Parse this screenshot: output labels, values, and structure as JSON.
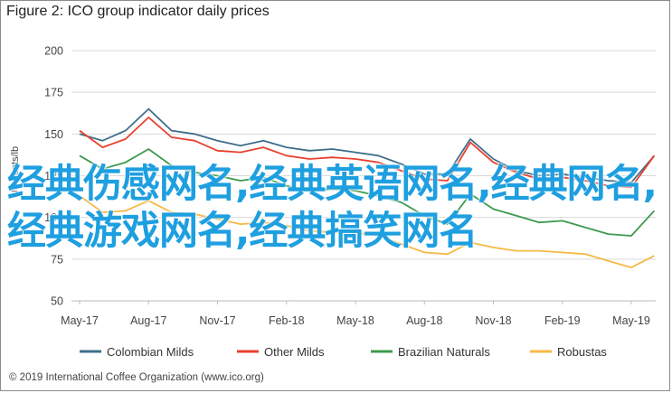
{
  "page": {
    "title": "Figure 2: ICO group indicator daily prices",
    "overlay_text": "经典伤感网名,经典英语网名,经典网名,经典游戏网名,经典搞笑网名",
    "credit": "© 2019 International Coffee Organization (www.ico.org)"
  },
  "chart_data": {
    "type": "line",
    "title": "Figure 2: ICO group indicator daily prices",
    "ylabel": "US cents/lb",
    "xlabel": "",
    "ylim": [
      50,
      200
    ],
    "yticks": [
      50,
      75,
      100,
      125,
      150,
      175,
      200
    ],
    "ytick_labels": [
      "50",
      "75",
      "100",
      "125",
      "150",
      "175",
      "200"
    ],
    "xticks": [
      "May-17",
      "Aug-17",
      "Nov-17",
      "Feb-18",
      "May-18",
      "Aug-18",
      "Nov-18",
      "Feb-19",
      "May-19"
    ],
    "grid": true,
    "legend_position": "bottom",
    "x": [
      "2017-05",
      "2017-06",
      "2017-07",
      "2017-08",
      "2017-09",
      "2017-10",
      "2017-11",
      "2017-12",
      "2018-01",
      "2018-02",
      "2018-03",
      "2018-04",
      "2018-05",
      "2018-06",
      "2018-07",
      "2018-08",
      "2018-09",
      "2018-10",
      "2018-11",
      "2018-12",
      "2019-01",
      "2019-02",
      "2019-03",
      "2019-04",
      "2019-05",
      "2019-06"
    ],
    "series": [
      {
        "name": "Colombian Milds",
        "color": "#3f6e8c",
        "values": [
          150,
          146,
          152,
          165,
          152,
          150,
          146,
          143,
          146,
          142,
          140,
          141,
          139,
          137,
          132,
          126,
          126,
          147,
          135,
          128,
          125,
          126,
          124,
          122,
          121,
          137
        ]
      },
      {
        "name": "Other Milds",
        "color": "#e8412e",
        "values": [
          152,
          142,
          147,
          160,
          148,
          146,
          140,
          139,
          142,
          137,
          135,
          136,
          135,
          133,
          128,
          123,
          122,
          145,
          133,
          127,
          123,
          124,
          122,
          119,
          118,
          137
        ]
      },
      {
        "name": "Brazilian Naturals",
        "color": "#3d9a4e",
        "values": [
          137,
          129,
          133,
          141,
          131,
          127,
          125,
          122,
          124,
          119,
          116,
          117,
          116,
          113,
          109,
          101,
          96,
          114,
          105,
          101,
          97,
          98,
          94,
          90,
          89,
          104
        ]
      },
      {
        "name": "Robustas",
        "color": "#f5b945",
        "values": [
          113,
          103,
          104,
          110,
          103,
          102,
          99,
          96,
          97,
          95,
          92,
          91,
          91,
          89,
          84,
          79,
          78,
          85,
          82,
          80,
          80,
          79,
          78,
          74,
          70,
          77
        ]
      }
    ]
  }
}
